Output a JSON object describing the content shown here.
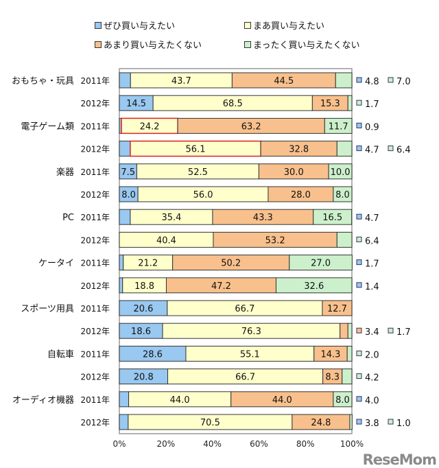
{
  "chart_data": {
    "type": "bar",
    "orientation": "horizontal",
    "stacked": true,
    "percent": true,
    "xlim": [
      0,
      100
    ],
    "x_ticks": [
      "0%",
      "20%",
      "40%",
      "60%",
      "80%",
      "100%"
    ],
    "legend_placement": "top",
    "series": [
      {
        "name": "ぜひ買い与えたい",
        "color": "#99c8f0"
      },
      {
        "name": "まあ買い与えたい",
        "color": "#ffffcc"
      },
      {
        "name": "あまり買い与えたくない",
        "color": "#f8c08c"
      },
      {
        "name": "まったく買い与えたくない",
        "color": "#ccf0cc"
      }
    ],
    "rows": [
      {
        "category": "おもちゃ・玩具",
        "year": "2011年",
        "values": [
          4.8,
          43.7,
          44.5,
          7.0
        ]
      },
      {
        "category": "",
        "year": "2012年",
        "values": [
          14.5,
          68.5,
          15.3,
          1.7
        ]
      },
      {
        "category": "電子ゲーム類",
        "year": "2011年",
        "values": [
          0.9,
          24.2,
          63.2,
          11.7
        ],
        "highlight": true
      },
      {
        "category": "",
        "year": "2012年",
        "values": [
          4.7,
          56.1,
          32.8,
          6.4
        ],
        "highlight": true
      },
      {
        "category": "楽器",
        "year": "2011年",
        "values": [
          7.5,
          52.5,
          30.0,
          10.0
        ]
      },
      {
        "category": "",
        "year": "2012年",
        "values": [
          8.0,
          56.0,
          28.0,
          8.0
        ]
      },
      {
        "category": "PC",
        "year": "2011年",
        "values": [
          4.7,
          35.4,
          43.3,
          16.5
        ]
      },
      {
        "category": "",
        "year": "2012年",
        "values": [
          0,
          40.4,
          53.2,
          6.4
        ]
      },
      {
        "category": "ケータイ",
        "year": "2011年",
        "values": [
          1.7,
          21.2,
          50.2,
          27.0
        ]
      },
      {
        "category": "",
        "year": "2012年",
        "values": [
          1.4,
          18.8,
          47.2,
          32.6
        ]
      },
      {
        "category": "スポーツ用具",
        "year": "2011年",
        "values": [
          20.6,
          66.7,
          12.7,
          0
        ]
      },
      {
        "category": "",
        "year": "2012年",
        "values": [
          18.6,
          76.3,
          3.4,
          1.7
        ]
      },
      {
        "category": "自転車",
        "year": "2011年",
        "values": [
          28.6,
          55.1,
          14.3,
          2.0
        ]
      },
      {
        "category": "",
        "year": "2012年",
        "values": [
          20.8,
          66.7,
          8.3,
          4.2
        ]
      },
      {
        "category": "オーディオ機器",
        "year": "2011年",
        "values": [
          4.0,
          44.0,
          44.0,
          8.0
        ]
      },
      {
        "category": "",
        "year": "2012年",
        "values": [
          3.8,
          70.5,
          24.8,
          1.0
        ]
      }
    ]
  },
  "watermark": "ReseMom"
}
